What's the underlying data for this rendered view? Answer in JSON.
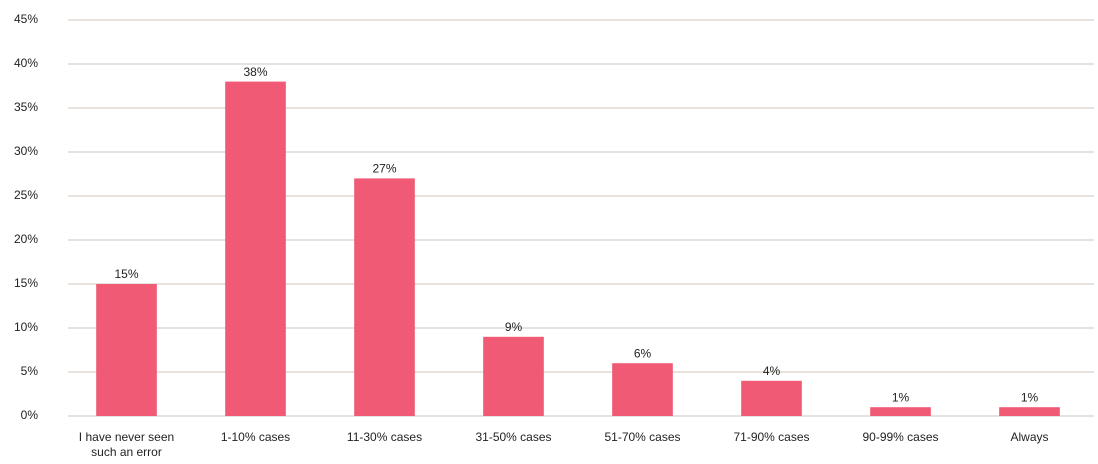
{
  "chart_data": {
    "type": "bar",
    "categories": [
      "I have never seen such an error",
      "1-10% cases",
      "11-30% cases",
      "31-50% cases",
      "51-70% cases",
      "71-90% cases",
      "90-99% cases",
      "Always"
    ],
    "values": [
      15,
      38,
      27,
      9,
      6,
      4,
      1,
      1
    ],
    "value_labels": [
      "15%",
      "38%",
      "27%",
      "9%",
      "6%",
      "4%",
      "1%",
      "1%"
    ],
    "color": "#f05a74",
    "ylim": [
      0,
      45
    ],
    "yticks": [
      {
        "value": 0,
        "label": "0%"
      },
      {
        "value": 5,
        "label": "5%"
      },
      {
        "value": 10,
        "label": "10%"
      },
      {
        "value": 15,
        "label": "15%"
      },
      {
        "value": 20,
        "label": "20%"
      },
      {
        "value": 25,
        "label": "25%"
      },
      {
        "value": 30,
        "label": "30%"
      },
      {
        "value": 35,
        "label": "35%"
      },
      {
        "value": 40,
        "label": "40%"
      },
      {
        "value": 45,
        "label": "45%"
      }
    ],
    "grid": true
  }
}
